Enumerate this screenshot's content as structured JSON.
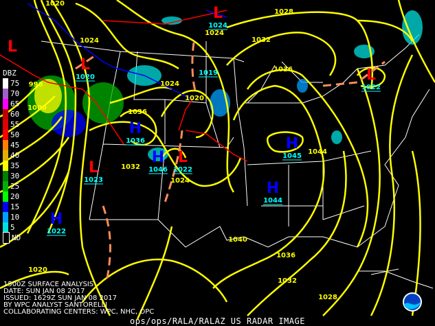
{
  "colors": {
    "isobar": "#ffff00",
    "high": "#0000ff",
    "low": "#ff0000",
    "center_label": "#00ffff",
    "trough": "#ff8c5a",
    "cold_front": "#0000ff",
    "warm_front": "#ff0000",
    "borders": "#ffffff"
  },
  "legend": {
    "title": "DBZ",
    "items": [
      {
        "label": "75",
        "color": "#ffffff"
      },
      {
        "label": "70",
        "color": "#a060c8"
      },
      {
        "label": "65",
        "color": "#ff00ff"
      },
      {
        "label": "60",
        "color": "#c00000"
      },
      {
        "label": "55",
        "color": "#e00000"
      },
      {
        "label": "50",
        "color": "#ff0000"
      },
      {
        "label": "45",
        "color": "#ff8000"
      },
      {
        "label": "40",
        "color": "#e0b000"
      },
      {
        "label": "35",
        "color": "#ffff00"
      },
      {
        "label": "30",
        "color": "#008000"
      },
      {
        "label": "25",
        "color": "#00b000"
      },
      {
        "label": "20",
        "color": "#00ff00"
      },
      {
        "label": "15",
        "color": "#0000ff"
      },
      {
        "label": "10",
        "color": "#00a0ff"
      },
      {
        "label": "5",
        "color": "#00e0e0"
      },
      {
        "label": "ND",
        "color": "#000000"
      }
    ]
  },
  "pressure_centers": [
    {
      "type": "H",
      "value": "1036"
    },
    {
      "type": "H",
      "value": "1046"
    },
    {
      "type": "H",
      "value": "1045"
    },
    {
      "type": "H",
      "value": "1044"
    },
    {
      "type": "H",
      "value": "1022"
    },
    {
      "type": "L",
      "value": "1024"
    },
    {
      "type": "L",
      "value": ""
    },
    {
      "type": "L",
      "value": "1020"
    },
    {
      "type": "L",
      "value": "1023"
    },
    {
      "type": "L",
      "value": "1022"
    },
    {
      "type": "L",
      "value": "1022"
    },
    {
      "type": "L",
      "value": "1019"
    }
  ],
  "isobar_labels": [
    "1020",
    "1024",
    "1024",
    "1020",
    "1036",
    "1032",
    "1024",
    "1028",
    "1032",
    "1036",
    "1044",
    "1040",
    "1036",
    "1032",
    "1028",
    "1020",
    "996",
    "1000",
    "1024"
  ],
  "caption": {
    "line1": "1500Z SURFACE ANALYSIS",
    "line2": "DATE: SUN JAN 08 2017",
    "line3": "ISSUED: 1629Z SUN JAN 08 2017",
    "line4": "BY WPC ANALYST SANTORELLI",
    "line5": "COLLABORATING CENTERS: WPC, NHC, OPC"
  },
  "footer": "ops/ops/RALA/RALAZ US RADAR IMAGE",
  "logo": "NOAA"
}
